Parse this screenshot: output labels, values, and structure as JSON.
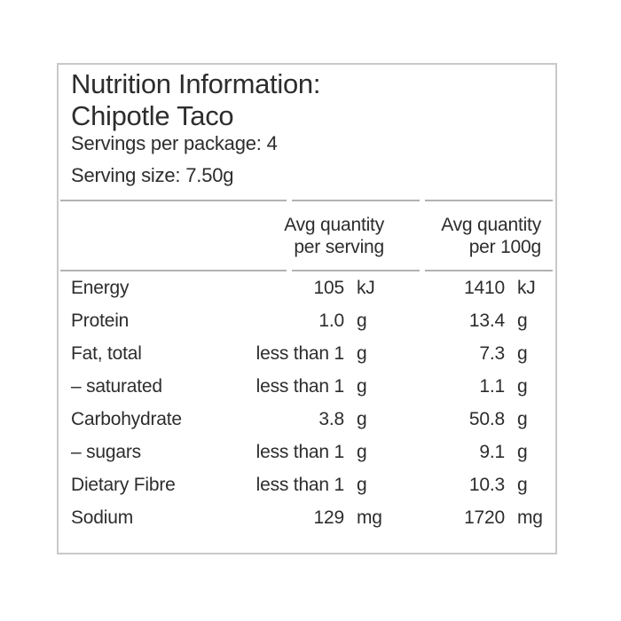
{
  "colors": {
    "text": "#2d2d2d",
    "table_rule": "#b2b2b2",
    "card_border": "#c9c9c9",
    "background": "#ffffff"
  },
  "card": {
    "title_line1": "Nutrition Information:",
    "title_line2": "Chipotle Taco",
    "servings_per_package": "Servings per package: 4",
    "serving_size": "Serving size: 7.50g"
  },
  "table": {
    "header": {
      "nutrient_col": "",
      "per_serving": {
        "line1": "Avg quantity",
        "line2": "per serving"
      },
      "per_100g": {
        "line1": "Avg quantity",
        "line2": "per 100g"
      }
    },
    "rows": [
      {
        "label": "Energy",
        "per_serving": {
          "value": "105",
          "unit": "kJ"
        },
        "per_100g": {
          "value": "1410",
          "unit": "kJ"
        }
      },
      {
        "label": "Protein",
        "per_serving": {
          "value": "1.0",
          "unit": "g"
        },
        "per_100g": {
          "value": "13.4",
          "unit": "g"
        }
      },
      {
        "label": "Fat, total",
        "per_serving": {
          "value": "less than 1",
          "unit": "g"
        },
        "per_100g": {
          "value": "7.3",
          "unit": "g"
        }
      },
      {
        "label": "– saturated",
        "per_serving": {
          "value": "less than 1",
          "unit": "g"
        },
        "per_100g": {
          "value": "1.1",
          "unit": "g"
        }
      },
      {
        "label": "Carbohydrate",
        "per_serving": {
          "value": "3.8",
          "unit": "g"
        },
        "per_100g": {
          "value": "50.8",
          "unit": "g"
        }
      },
      {
        "label": "– sugars",
        "per_serving": {
          "value": "less than 1",
          "unit": "g"
        },
        "per_100g": {
          "value": "9.1",
          "unit": "g"
        }
      },
      {
        "label": "Dietary Fibre",
        "per_serving": {
          "value": "less than 1",
          "unit": "g"
        },
        "per_100g": {
          "value": "10.3",
          "unit": "g"
        }
      },
      {
        "label": "Sodium",
        "per_serving": {
          "value": "129",
          "unit": "mg"
        },
        "per_100g": {
          "value": "1720",
          "unit": "mg"
        }
      }
    ]
  }
}
